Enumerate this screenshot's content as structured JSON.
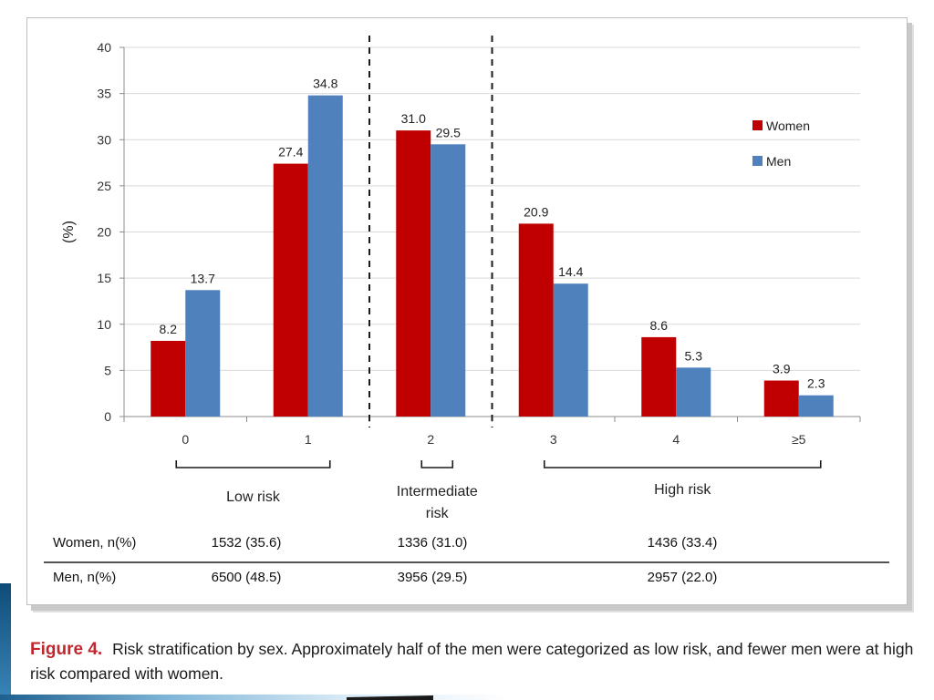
{
  "chart_data": {
    "type": "bar",
    "title": "",
    "ylabel": "(%)",
    "xlabel": "",
    "ylim": [
      0,
      40
    ],
    "yticks": [
      0,
      5,
      10,
      15,
      20,
      25,
      30,
      35,
      40
    ],
    "categories": [
      "0",
      "1",
      "2",
      "3",
      "4",
      "≥5"
    ],
    "series": [
      {
        "name": "Women",
        "color": "#c00000",
        "values": [
          8.2,
          27.4,
          31.0,
          20.9,
          8.6,
          3.9
        ],
        "labels": [
          "8.2",
          "27.4",
          "31.0",
          "20.9",
          "8.6",
          "3.9"
        ]
      },
      {
        "name": "Men",
        "color": "#4f81bd",
        "values": [
          13.7,
          34.8,
          29.5,
          14.4,
          5.3,
          2.3
        ],
        "labels": [
          "13.7",
          "34.8",
          "29.5",
          "14.4",
          "5.3",
          "2.3"
        ]
      }
    ],
    "legend_position": "top-right",
    "groups": [
      {
        "label_lines": [
          "Low",
          "risk"
        ],
        "categories": [
          "0",
          "1"
        ]
      },
      {
        "label_lines": [
          "Intermediate",
          "risk"
        ],
        "categories": [
          "2"
        ]
      },
      {
        "label_lines": [
          "High risk"
        ],
        "categories": [
          "3",
          "4",
          "≥5"
        ]
      }
    ]
  },
  "table": {
    "rows": [
      {
        "label": "Women, n(%)",
        "cells": [
          "1532 (35.6)",
          "1336 (31.0)",
          "1436 (33.4)"
        ]
      },
      {
        "label": "Men, n(%)",
        "cells": [
          "6500 (48.5)",
          "3956 (29.5)",
          "2957 (22.0)"
        ]
      }
    ]
  },
  "caption": {
    "figure_label": "Figure 4.",
    "text": "Risk stratification by sex. Approximately half of the men were categorized as low risk, and fewer men were at high risk compared with women."
  }
}
